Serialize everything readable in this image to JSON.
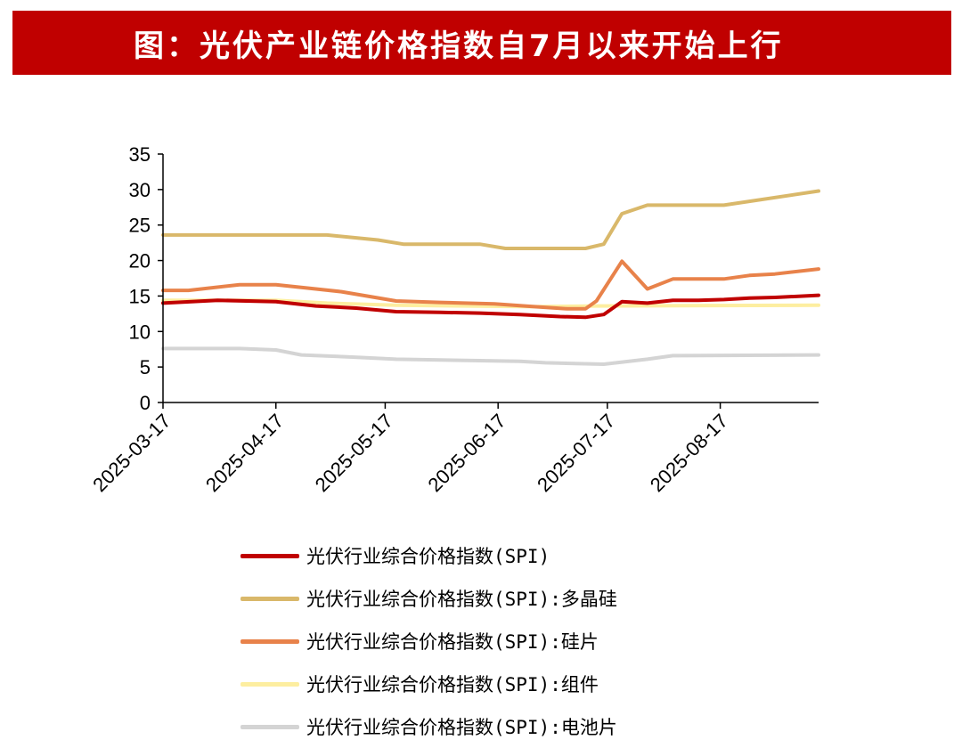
{
  "header": {
    "title": "图：光伏产业链价格指数自7月以来开始上行"
  },
  "chart_data": {
    "type": "line",
    "ylim": [
      0,
      35
    ],
    "yticks": [
      0,
      5,
      10,
      15,
      20,
      25,
      30,
      35
    ],
    "xlim": [
      "2025-03-17",
      "2025-09-13"
    ],
    "xticks": [
      "2025-03-17",
      "2025-04-17",
      "2025-05-17",
      "2025-06-17",
      "2025-07-17",
      "2025-08-17"
    ],
    "grid": false,
    "legend_position": "bottom",
    "series": [
      {
        "name": "光伏行业综合价格指数(SPI)",
        "color": "#c00000",
        "points": [
          [
            "2025-03-17",
            14.0
          ],
          [
            "2025-04-01",
            14.4
          ],
          [
            "2025-04-17",
            14.2
          ],
          [
            "2025-04-28",
            13.6
          ],
          [
            "2025-05-09",
            13.3
          ],
          [
            "2025-05-20",
            12.8
          ],
          [
            "2025-06-01",
            12.7
          ],
          [
            "2025-06-12",
            12.6
          ],
          [
            "2025-06-23",
            12.4
          ],
          [
            "2025-07-04",
            12.1
          ],
          [
            "2025-07-11",
            12.0
          ],
          [
            "2025-07-16",
            12.4
          ],
          [
            "2025-07-21",
            14.2
          ],
          [
            "2025-07-28",
            14.0
          ],
          [
            "2025-08-04",
            14.4
          ],
          [
            "2025-08-11",
            14.4
          ],
          [
            "2025-08-18",
            14.5
          ],
          [
            "2025-08-25",
            14.7
          ],
          [
            "2025-09-01",
            14.8
          ],
          [
            "2025-09-13",
            15.1
          ]
        ]
      },
      {
        "name": "光伏行业综合价格指数(SPI):多晶硅",
        "color": "#d9b86a",
        "points": [
          [
            "2025-03-17",
            23.6
          ],
          [
            "2025-04-17",
            23.6
          ],
          [
            "2025-05-01",
            23.6
          ],
          [
            "2025-05-15",
            22.9
          ],
          [
            "2025-05-22",
            22.3
          ],
          [
            "2025-06-12",
            22.3
          ],
          [
            "2025-06-19",
            21.7
          ],
          [
            "2025-07-11",
            21.7
          ],
          [
            "2025-07-16",
            22.3
          ],
          [
            "2025-07-21",
            26.6
          ],
          [
            "2025-07-28",
            27.8
          ],
          [
            "2025-08-18",
            27.8
          ],
          [
            "2025-09-13",
            29.8
          ]
        ]
      },
      {
        "name": "光伏行业综合价格指数(SPI):硅片",
        "color": "#e8824a",
        "points": [
          [
            "2025-03-17",
            15.8
          ],
          [
            "2025-03-24",
            15.8
          ],
          [
            "2025-04-07",
            16.6
          ],
          [
            "2025-04-17",
            16.6
          ],
          [
            "2025-04-28",
            16.0
          ],
          [
            "2025-05-05",
            15.6
          ],
          [
            "2025-05-20",
            14.3
          ],
          [
            "2025-06-01",
            14.1
          ],
          [
            "2025-06-16",
            13.9
          ],
          [
            "2025-06-27",
            13.5
          ],
          [
            "2025-07-06",
            13.2
          ],
          [
            "2025-07-11",
            13.2
          ],
          [
            "2025-07-14",
            14.3
          ],
          [
            "2025-07-21",
            19.9
          ],
          [
            "2025-07-28",
            16.0
          ],
          [
            "2025-08-04",
            17.4
          ],
          [
            "2025-08-18",
            17.4
          ],
          [
            "2025-08-25",
            17.9
          ],
          [
            "2025-09-01",
            18.1
          ],
          [
            "2025-09-13",
            18.8
          ]
        ]
      },
      {
        "name": "光伏行业综合价格指数(SPI):组件",
        "color": "#fdeea0",
        "points": [
          [
            "2025-03-17",
            14.4
          ],
          [
            "2025-04-17",
            14.4
          ],
          [
            "2025-05-01",
            14.0
          ],
          [
            "2025-05-20",
            13.7
          ],
          [
            "2025-06-27",
            13.5
          ],
          [
            "2025-07-14",
            13.6
          ],
          [
            "2025-09-13",
            13.7
          ]
        ]
      },
      {
        "name": "光伏行业综合价格指数(SPI):电池片",
        "color": "#d4d4d4",
        "points": [
          [
            "2025-03-17",
            7.6
          ],
          [
            "2025-04-07",
            7.6
          ],
          [
            "2025-04-17",
            7.4
          ],
          [
            "2025-04-24",
            6.7
          ],
          [
            "2025-05-08",
            6.4
          ],
          [
            "2025-05-20",
            6.1
          ],
          [
            "2025-06-12",
            5.9
          ],
          [
            "2025-06-23",
            5.8
          ],
          [
            "2025-06-30",
            5.6
          ],
          [
            "2025-07-16",
            5.4
          ],
          [
            "2025-07-28",
            6.1
          ],
          [
            "2025-08-04",
            6.6
          ],
          [
            "2025-09-13",
            6.7
          ]
        ]
      }
    ]
  }
}
